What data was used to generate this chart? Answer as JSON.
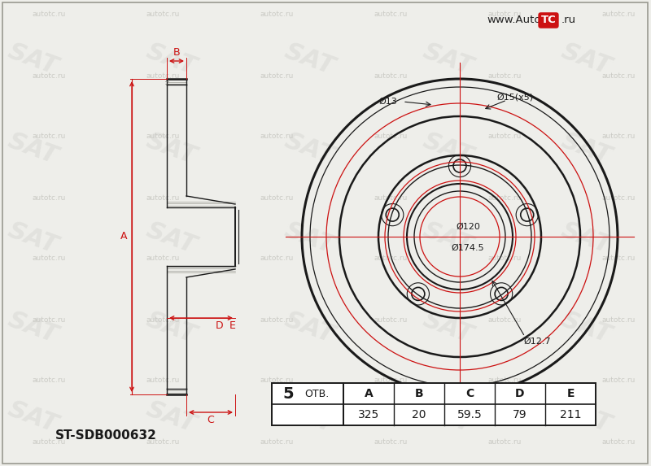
{
  "bg_color": "#eeeeea",
  "line_color": "#1a1a1a",
  "red_color": "#cc1111",
  "part_number": "ST-SDB000632",
  "bolt_count": "5",
  "otv_label": "ОТВ.",
  "table_headers": [
    "A",
    "B",
    "C",
    "D",
    "E"
  ],
  "table_values": [
    "325",
    "20",
    "59.5",
    "79",
    "211"
  ],
  "dim_labels": {
    "phi13": "Ø13",
    "phi15x5": "Ø15(x5)",
    "phi120": "Ø120",
    "phi174_5": "Ø174.5",
    "phi12_7": "Ø12.7",
    "A": "A",
    "B": "B",
    "C": "C",
    "D": "D",
    "E": "E"
  }
}
